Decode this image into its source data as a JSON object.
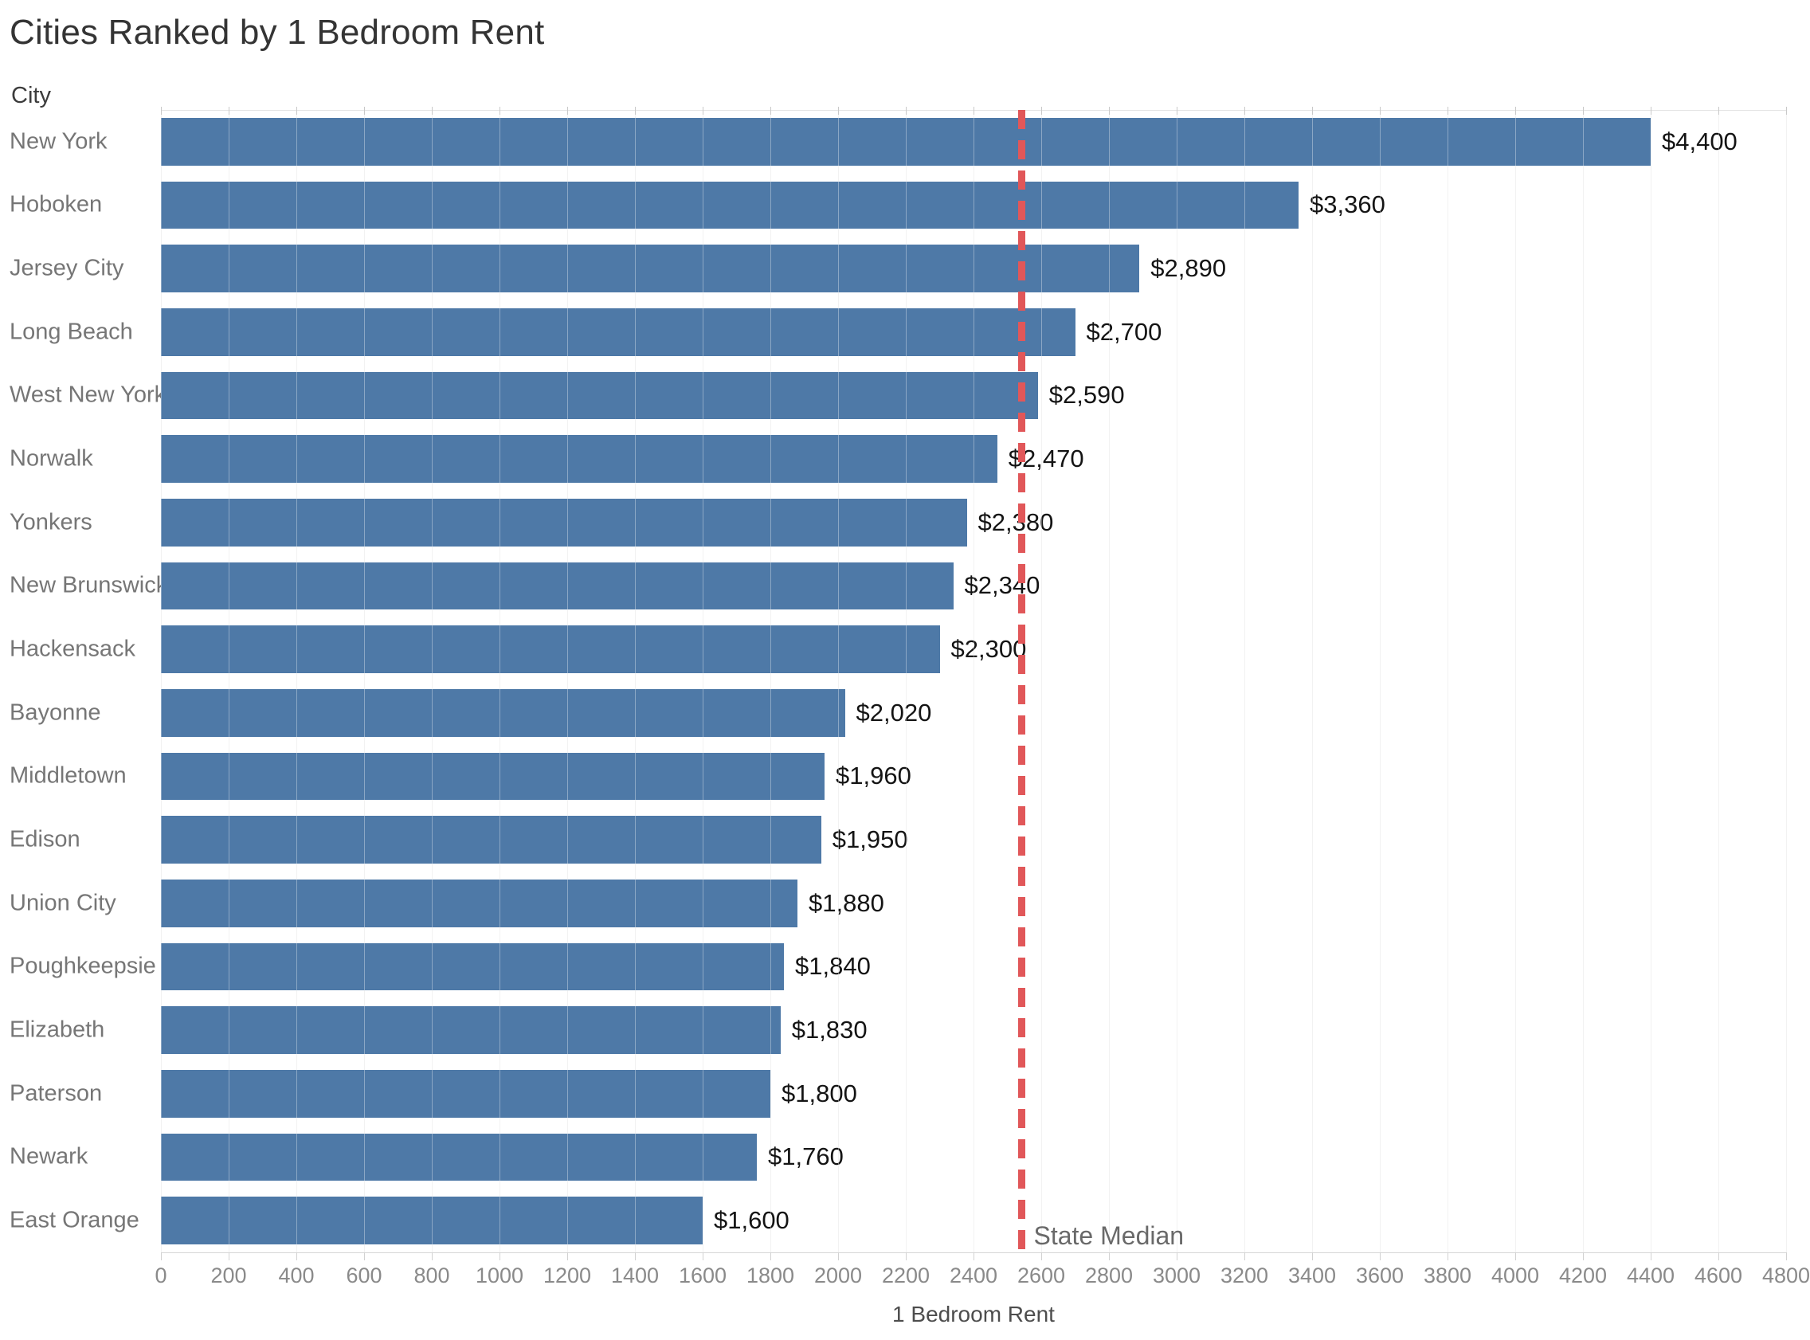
{
  "chart_data": {
    "type": "bar",
    "orientation": "horizontal",
    "title": "Cities Ranked by 1 Bedroom Rent",
    "ylabel": "City",
    "xlabel": "1 Bedroom Rent",
    "categories": [
      "New York",
      "Hoboken",
      "Jersey City",
      "Long Beach",
      "West New York",
      "Norwalk",
      "Yonkers",
      "New Brunswick",
      "Hackensack",
      "Bayonne",
      "Middletown",
      "Edison",
      "Union City",
      "Poughkeepsie",
      "Elizabeth",
      "Paterson",
      "Newark",
      "East Orange"
    ],
    "values": [
      4400,
      3360,
      2890,
      2700,
      2590,
      2470,
      2380,
      2340,
      2300,
      2020,
      1960,
      1950,
      1880,
      1840,
      1830,
      1800,
      1760,
      1600
    ],
    "value_labels": [
      "$4,400",
      "$3,360",
      "$2,890",
      "$2,700",
      "$2,590",
      "$2,470",
      "$2,380",
      "$2,340",
      "$2,300",
      "$2,020",
      "$1,960",
      "$1,950",
      "$1,880",
      "$1,840",
      "$1,830",
      "$1,800",
      "$1,760",
      "$1,600"
    ],
    "xlim": [
      0,
      4800
    ],
    "x_tick_step": 200,
    "x_ticks": [
      0,
      200,
      400,
      600,
      800,
      1000,
      1200,
      1400,
      1600,
      1800,
      2000,
      2200,
      2400,
      2600,
      2800,
      3000,
      3200,
      3400,
      3600,
      3800,
      4000,
      4200,
      4400,
      4600,
      4800
    ],
    "grid": true,
    "legend": "none",
    "bar_color": "#4e79a7",
    "reference_line": {
      "value": 2540,
      "label": "State Median",
      "color": "#e15759",
      "style": "dashed"
    }
  }
}
